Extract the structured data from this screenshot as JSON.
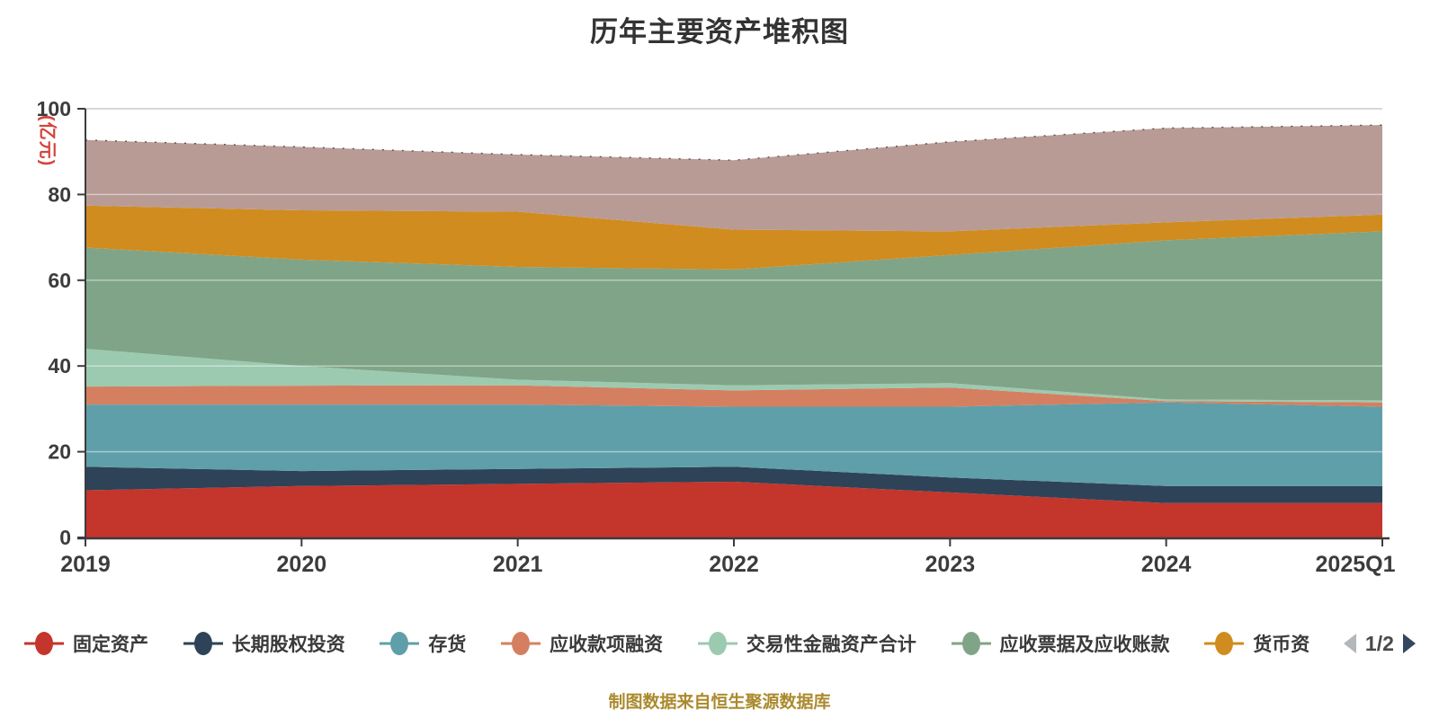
{
  "title": "历年主要资产堆积图",
  "footer": "制图数据来自恒生聚源数据库",
  "colors": {
    "axis": "#3c3c3c",
    "grid": "#cccccc",
    "grid_over_area": "rgba(255,255,255,0.45)",
    "title": "#333333",
    "y_axis_name": "#d5453d",
    "pager_prev": "#b3b7ba",
    "pager_next": "#33485c"
  },
  "y_axis": {
    "name": "(亿元)",
    "ticks": [
      0,
      20,
      40,
      60,
      80,
      100
    ],
    "min": 0,
    "max": 100
  },
  "x_axis": {
    "categories": [
      "2019",
      "2020",
      "2021",
      "2022",
      "2023",
      "2024",
      "2025Q1"
    ]
  },
  "legend": {
    "items": [
      {
        "label": "固定资产",
        "color": "#c4352c"
      },
      {
        "label": "长期股权投资",
        "color": "#2e4357"
      },
      {
        "label": "存货",
        "color": "#5f9fa9"
      },
      {
        "label": "应收款项融资",
        "color": "#d57f61"
      },
      {
        "label": "交易性金融资产合计",
        "color": "#9ccab0"
      },
      {
        "label": "应收票据及应收账款",
        "color": "#80a487"
      },
      {
        "label": "货币资",
        "color": "#d08c1e"
      }
    ],
    "pagination": {
      "text": "1/2",
      "prev_enabled": false,
      "next_enabled": true
    }
  },
  "chart_data": {
    "type": "area",
    "stacked": true,
    "title": "历年主要资产堆积图",
    "ylabel": "(亿元)",
    "ylim": [
      0,
      100
    ],
    "grid": true,
    "legend_position": "bottom",
    "x": [
      "2019",
      "2020",
      "2021",
      "2022",
      "2023",
      "2024",
      "2025Q1"
    ],
    "series": [
      {
        "name": "固定资产",
        "color": "#c4352c",
        "values": [
          11.0,
          12.0,
          12.5,
          13.0,
          10.5,
          8.0,
          8.0
        ]
      },
      {
        "name": "长期股权投资",
        "color": "#2e4357",
        "values": [
          5.5,
          3.5,
          3.5,
          3.5,
          3.5,
          4.0,
          4.0
        ]
      },
      {
        "name": "存货",
        "color": "#5f9fa9",
        "values": [
          14.5,
          15.5,
          15.0,
          14.0,
          16.5,
          19.5,
          18.5
        ]
      },
      {
        "name": "应收款项融资",
        "color": "#d57f61",
        "values": [
          4.2,
          4.4,
          4.5,
          3.8,
          4.5,
          0.3,
          1.0
        ]
      },
      {
        "name": "交易性金融资产合计",
        "color": "#9ccab0",
        "values": [
          8.8,
          4.6,
          1.3,
          1.2,
          1.0,
          0.4,
          0.5
        ]
      },
      {
        "name": "应收票据及应收账款",
        "color": "#80a487",
        "values": [
          23.6,
          24.8,
          26.3,
          27.0,
          29.9,
          37.1,
          39.4
        ]
      },
      {
        "name": "货币资",
        "color": "#d08c1e",
        "values": [
          9.8,
          11.5,
          12.9,
          9.3,
          5.5,
          4.2,
          3.9
        ]
      },
      {
        "name": "",
        "color": "#b99b96",
        "values": [
          15.3,
          14.8,
          13.3,
          16.2,
          20.9,
          22.0,
          20.9
        ],
        "note": "top series; its legend label is on page 2/2 (not visible)"
      }
    ]
  }
}
